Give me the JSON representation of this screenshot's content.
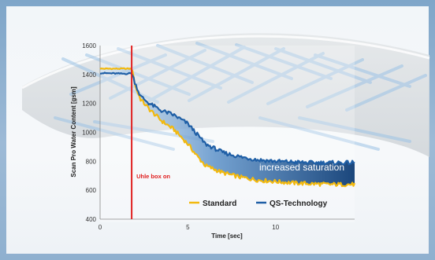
{
  "chart_data": {
    "type": "line",
    "xlabel": "Time [sec]",
    "ylabel": "Scan Pro Water Content [gsm]",
    "xlim": [
      0,
      14.5
    ],
    "ylim": [
      400,
      1600
    ],
    "xticks": [
      "0",
      "5",
      "10"
    ],
    "yticks": [
      "400",
      "600",
      "800",
      "1000",
      "1200",
      "1400",
      "1600"
    ],
    "legend_position": "bottom-right",
    "series": [
      {
        "name": "Standard",
        "color": "#f2b90f",
        "x": [
          0,
          1.8,
          1.9,
          2.0,
          2.3,
          2.8,
          3.5,
          4.2,
          5.0,
          5.5,
          6.0,
          7.0,
          8.0,
          9.0,
          10.0,
          11.0,
          12.0,
          13.0,
          14.5
        ],
        "y": [
          1440,
          1440,
          1400,
          1320,
          1230,
          1160,
          1080,
          1020,
          920,
          840,
          770,
          720,
          690,
          670,
          660,
          650,
          645,
          640,
          640
        ]
      },
      {
        "name": "QS-Technology",
        "color": "#1f5fa6",
        "x": [
          0,
          1.5,
          1.8,
          2.0,
          2.3,
          2.8,
          3.5,
          4.2,
          5.0,
          5.5,
          6.0,
          7.0,
          8.0,
          9.0,
          10.0,
          11.0,
          12.0,
          13.0,
          14.5
        ],
        "y": [
          1410,
          1405,
          1410,
          1340,
          1250,
          1200,
          1150,
          1120,
          1060,
          990,
          920,
          860,
          830,
          810,
          800,
          795,
          790,
          790,
          790
        ]
      }
    ],
    "annotations": [
      {
        "text": "Uhle box on",
        "x": 1.8,
        "color": "#e02020"
      },
      {
        "text": "increased saturation"
      }
    ]
  }
}
